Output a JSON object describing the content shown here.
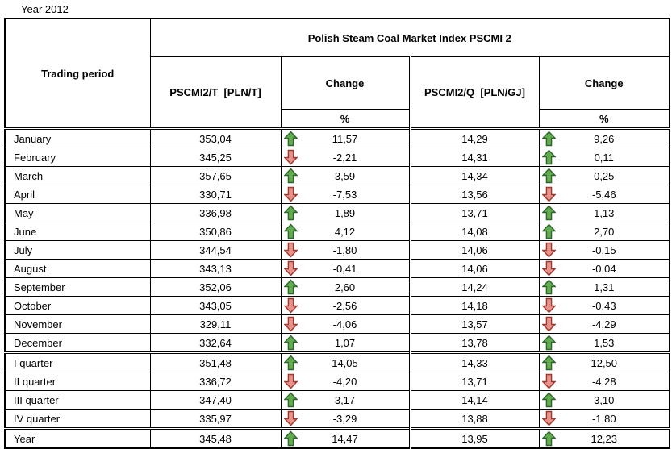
{
  "page_title": "Year 2012",
  "table": {
    "title": "Polish Steam Coal Market Index PSCMI 2",
    "col_trading_period": "Trading period",
    "col_pscmi_t": "PSCMI2/T  [PLN/T]",
    "col_change_t": "Change",
    "col_pscmi_q": "PSCMI2/Q  [PLN/GJ]",
    "col_change_q": "Change",
    "percent": "%",
    "rows": [
      {
        "period": "January",
        "pscmi_t": "353,04",
        "dir_t": "up",
        "change_t": "11,57",
        "pscmi_q": "14,29",
        "dir_q": "up",
        "change_q": "9,26",
        "section": "months"
      },
      {
        "period": "February",
        "pscmi_t": "345,25",
        "dir_t": "down",
        "change_t": "-2,21",
        "pscmi_q": "14,31",
        "dir_q": "up",
        "change_q": "0,11",
        "section": "months"
      },
      {
        "period": "March",
        "pscmi_t": "357,65",
        "dir_t": "up",
        "change_t": "3,59",
        "pscmi_q": "14,34",
        "dir_q": "up",
        "change_q": "0,25",
        "section": "months"
      },
      {
        "period": "April",
        "pscmi_t": "330,71",
        "dir_t": "down",
        "change_t": "-7,53",
        "pscmi_q": "13,56",
        "dir_q": "down",
        "change_q": "-5,46",
        "section": "months"
      },
      {
        "period": "May",
        "pscmi_t": "336,98",
        "dir_t": "up",
        "change_t": "1,89",
        "pscmi_q": "13,71",
        "dir_q": "up",
        "change_q": "1,13",
        "section": "months"
      },
      {
        "period": "June",
        "pscmi_t": "350,86",
        "dir_t": "up",
        "change_t": "4,12",
        "pscmi_q": "14,08",
        "dir_q": "up",
        "change_q": "2,70",
        "section": "months"
      },
      {
        "period": "July",
        "pscmi_t": "344,54",
        "dir_t": "down",
        "change_t": "-1,80",
        "pscmi_q": "14,06",
        "dir_q": "down",
        "change_q": "-0,15",
        "section": "months"
      },
      {
        "period": "August",
        "pscmi_t": "343,13",
        "dir_t": "down",
        "change_t": "-0,41",
        "pscmi_q": "14,06",
        "dir_q": "down",
        "change_q": "-0,04",
        "section": "months"
      },
      {
        "period": "September",
        "pscmi_t": "352,06",
        "dir_t": "up",
        "change_t": "2,60",
        "pscmi_q": "14,24",
        "dir_q": "up",
        "change_q": "1,31",
        "section": "months"
      },
      {
        "period": "October",
        "pscmi_t": "343,05",
        "dir_t": "down",
        "change_t": "-2,56",
        "pscmi_q": "14,18",
        "dir_q": "down",
        "change_q": "-0,43",
        "section": "months"
      },
      {
        "period": "November",
        "pscmi_t": "329,11",
        "dir_t": "down",
        "change_t": "-4,06",
        "pscmi_q": "13,57",
        "dir_q": "down",
        "change_q": "-4,29",
        "section": "months"
      },
      {
        "period": "December",
        "pscmi_t": "332,64",
        "dir_t": "up",
        "change_t": "1,07",
        "pscmi_q": "13,78",
        "dir_q": "up",
        "change_q": "1,53",
        "section": "months"
      },
      {
        "period": "I quarter",
        "pscmi_t": "351,48",
        "dir_t": "up",
        "change_t": "14,05",
        "pscmi_q": "14,33",
        "dir_q": "up",
        "change_q": "12,50",
        "section": "quarters"
      },
      {
        "period": "II quarter",
        "pscmi_t": "336,72",
        "dir_t": "down",
        "change_t": "-4,20",
        "pscmi_q": "13,71",
        "dir_q": "down",
        "change_q": "-4,28",
        "section": "quarters"
      },
      {
        "period": "III quarter",
        "pscmi_t": "347,40",
        "dir_t": "up",
        "change_t": "3,17",
        "pscmi_q": "14,14",
        "dir_q": "up",
        "change_q": "3,10",
        "section": "quarters"
      },
      {
        "period": "IV quarter",
        "pscmi_t": "335,97",
        "dir_t": "down",
        "change_t": "-3,29",
        "pscmi_q": "13,88",
        "dir_q": "down",
        "change_q": "-1,80",
        "section": "quarters"
      },
      {
        "period": "Year",
        "pscmi_t": "345,48",
        "dir_t": "up",
        "change_t": "14,47",
        "pscmi_q": "13,95",
        "dir_q": "up",
        "change_q": "12,23",
        "section": "year"
      }
    ]
  },
  "colors": {
    "arrow_up_fill": "#63AC4E",
    "arrow_up_stroke": "#2F6630",
    "arrow_down_fill": "#E8938A",
    "arrow_down_stroke": "#9E372E",
    "grid": "#000000"
  }
}
